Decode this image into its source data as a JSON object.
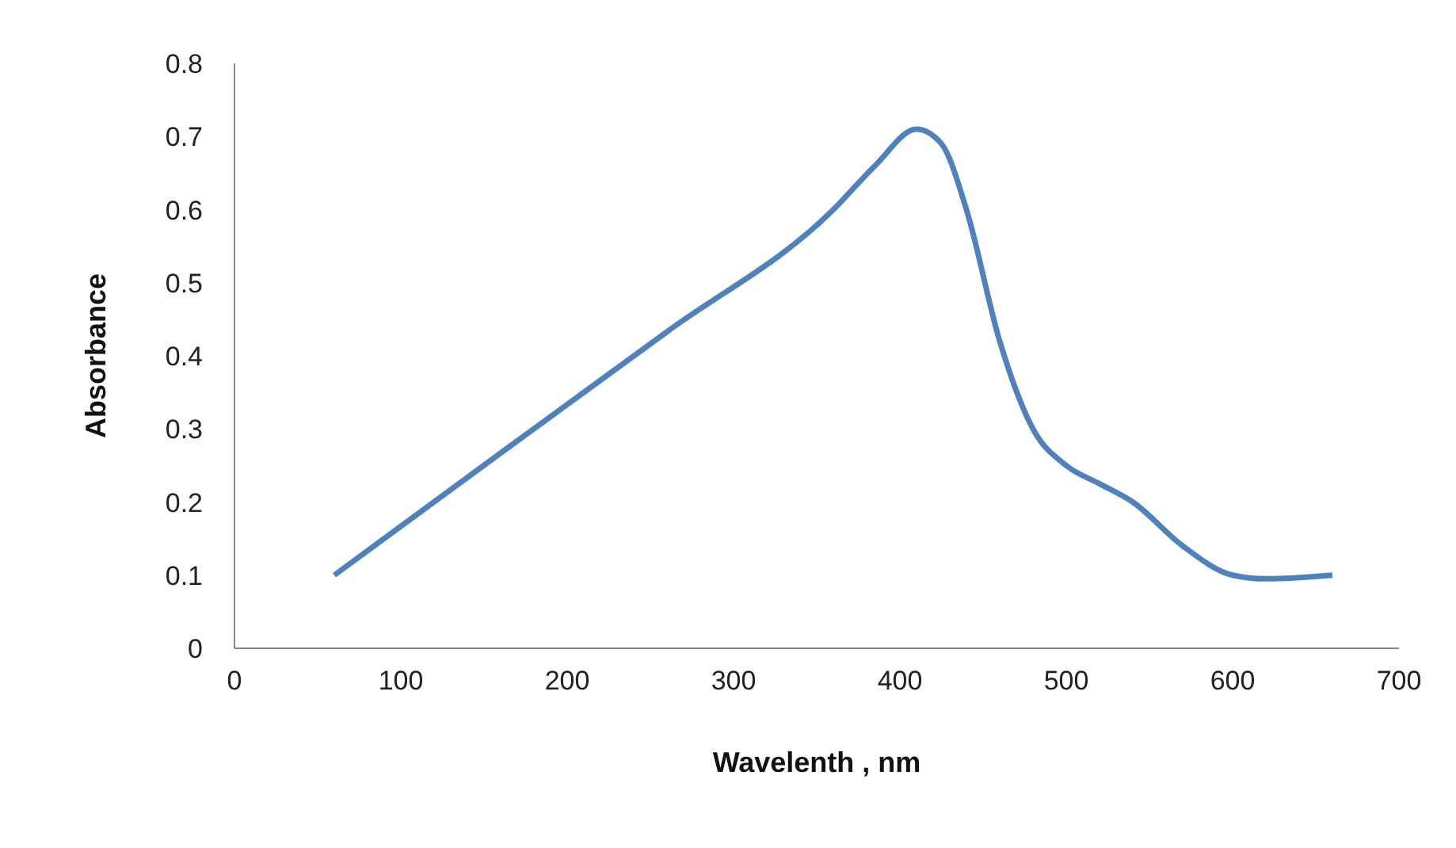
{
  "chart_data": {
    "type": "line",
    "xlabel": "Wavelenth , nm",
    "ylabel": "Absorbance",
    "x": [
      60,
      160,
      260,
      360,
      385,
      410,
      425,
      440,
      460,
      480,
      500,
      520,
      540,
      570,
      600,
      620,
      660
    ],
    "series": [
      {
        "color": "#4f81bd",
        "values": [
          0.1,
          0.267,
          0.433,
          0.6,
          0.66,
          0.71,
          0.69,
          0.6,
          0.42,
          0.3,
          0.25,
          0.225,
          0.2,
          0.14,
          0.1,
          0.095,
          0.1
        ]
      }
    ],
    "xlim": [
      0,
      700
    ],
    "xticks": [
      0,
      100,
      200,
      300,
      400,
      500,
      600,
      700
    ],
    "ylim": [
      0,
      0.8
    ],
    "yticks": [
      0,
      0.1,
      0.2,
      0.3,
      0.4,
      0.5,
      0.6,
      0.7,
      0.8
    ],
    "grid": false,
    "legend": false,
    "marker": "none",
    "line_style": "solid"
  }
}
